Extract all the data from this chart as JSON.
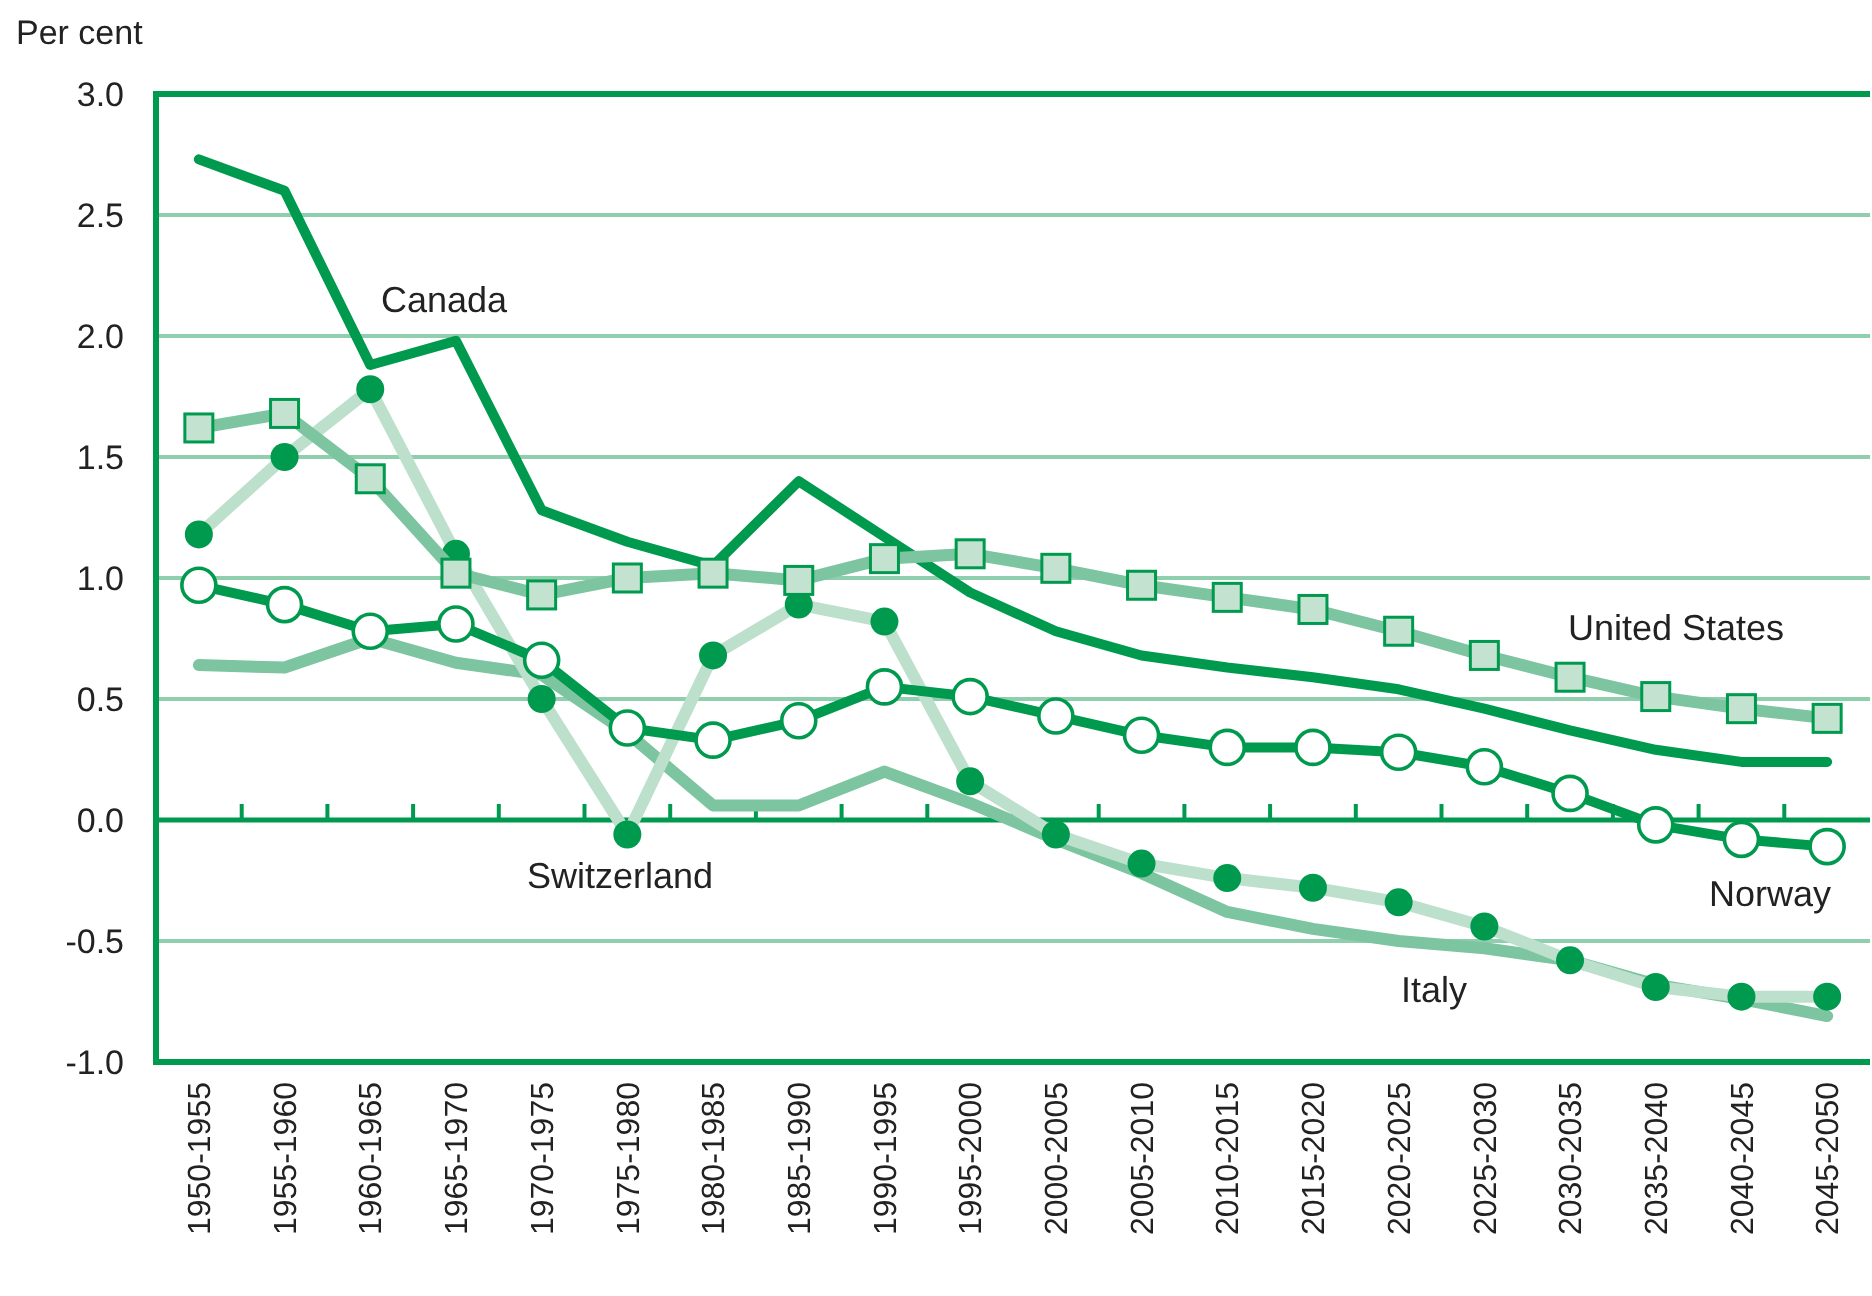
{
  "chart_data": {
    "type": "line",
    "ylabel": "Per cent",
    "categories": [
      "1950-1955",
      "1955-1960",
      "1960-1965",
      "1965-1970",
      "1970-1975",
      "1975-1980",
      "1980-1985",
      "1985-1990",
      "1990-1995",
      "1995-2000",
      "2000-2005",
      "2005-2010",
      "2010-2015",
      "2015-2020",
      "2020-2025",
      "2025-2030",
      "2030-2035",
      "2035-2040",
      "2040-2045",
      "2045-2050"
    ],
    "series": [
      {
        "name": "Canada",
        "color": "#009a4e",
        "marker": "none",
        "values": [
          2.73,
          2.6,
          1.88,
          1.98,
          1.28,
          1.15,
          1.05,
          1.4,
          1.17,
          0.94,
          0.78,
          0.68,
          0.63,
          0.59,
          0.54,
          0.46,
          0.37,
          0.29,
          0.24,
          0.24
        ]
      },
      {
        "name": "United States",
        "color": "#7dc5a0",
        "marker": "square",
        "values": [
          1.62,
          1.68,
          1.41,
          1.02,
          0.93,
          1.0,
          1.02,
          0.99,
          1.08,
          1.1,
          1.04,
          0.97,
          0.92,
          0.87,
          0.78,
          0.68,
          0.59,
          0.51,
          0.46,
          0.42
        ]
      },
      {
        "name": "Norway",
        "color": "#009a4e",
        "marker": "circle",
        "values": [
          0.97,
          0.89,
          0.78,
          0.81,
          0.66,
          0.38,
          0.33,
          0.41,
          0.55,
          0.51,
          0.43,
          0.35,
          0.3,
          0.3,
          0.28,
          0.22,
          0.11,
          -0.02,
          -0.08,
          -0.11
        ]
      },
      {
        "name": "Switzerland",
        "color": "#bde0cc",
        "marker": "circle",
        "values": [
          1.18,
          1.5,
          1.78,
          1.1,
          0.5,
          -0.06,
          0.68,
          0.89,
          0.82,
          0.16,
          -0.06,
          -0.18,
          -0.24,
          -0.28,
          -0.34,
          -0.44,
          -0.58,
          -0.69,
          -0.73,
          -0.73
        ]
      },
      {
        "name": "Italy",
        "color": "#7dc5a0",
        "marker": "none",
        "values": [
          0.64,
          0.63,
          0.75,
          0.65,
          0.6,
          0.36,
          0.06,
          0.06,
          0.2,
          0.07,
          -0.08,
          -0.22,
          -0.38,
          -0.45,
          -0.5,
          -0.53,
          -0.58,
          -0.68,
          -0.74,
          -0.81
        ]
      }
    ],
    "ylim": [
      -1,
      3
    ],
    "yticks": [
      {
        "value": -1,
        "label": "-1.0"
      },
      {
        "value": -0.5,
        "label": "-0.5"
      },
      {
        "value": 0,
        "label": "0.0"
      },
      {
        "value": 0.5,
        "label": "0.5"
      },
      {
        "value": 1,
        "label": "1.0"
      },
      {
        "value": 1.5,
        "label": "1.5"
      },
      {
        "value": 2,
        "label": "2.0"
      },
      {
        "value": 2.5,
        "label": "2.5"
      },
      {
        "value": 3,
        "label": "3.0"
      }
    ],
    "grid": "y",
    "ref_lines": [
      {
        "axis": "y",
        "value": 0,
        "color": "#009a4e"
      }
    ]
  }
}
